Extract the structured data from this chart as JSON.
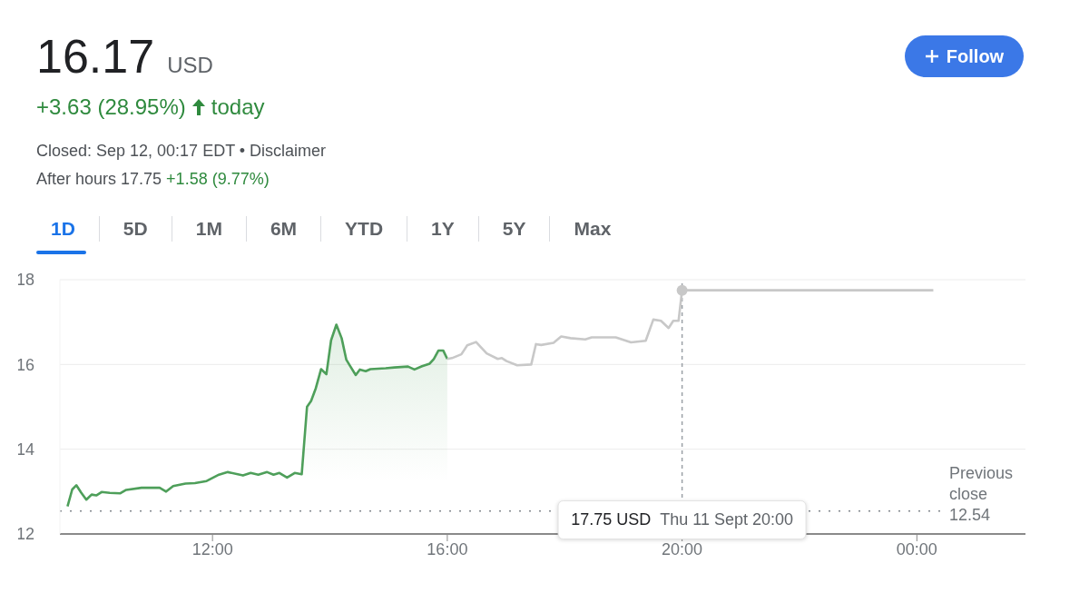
{
  "chart_data": {
    "type": "line",
    "title": "16.17",
    "subtitle": "USD",
    "annotations": [
      "+3.63 (28.95%)",
      "today",
      "Closed: Sep 12, 00:17 EDT • Disclaimer",
      "After hours 17.75",
      "+1.58 (9.77%)",
      "1D",
      "5D",
      "1M",
      "6M",
      "YTD",
      "1Y",
      "5Y",
      "Max",
      "Follow",
      "17.75 USD",
      "Thu 11 Sept 20:00"
    ],
    "series": [
      {
        "type": "area",
        "color": "#4e9f5a",
        "x": [
          9.53,
          9.61,
          9.68,
          9.76,
          9.85,
          9.94,
          10.02,
          10.11,
          10.25,
          10.43,
          10.53,
          10.79,
          11.1,
          11.21,
          11.33,
          11.54,
          11.7,
          11.9,
          12.11,
          12.26,
          12.52,
          12.65,
          12.78,
          12.93,
          13.04,
          13.14,
          13.27,
          13.4,
          13.52,
          13.61,
          13.68,
          13.76,
          13.85,
          13.94,
          14.02,
          14.11,
          14.2,
          14.28,
          14.35,
          14.44,
          14.51,
          14.61,
          14.69,
          14.95,
          15.1,
          15.33,
          15.44,
          15.57,
          15.7,
          15.77,
          15.85,
          15.93,
          16.0
        ],
        "values": [
          12.65,
          13.05,
          13.15,
          12.98,
          12.81,
          12.93,
          12.91,
          12.99,
          12.97,
          12.96,
          13.04,
          13.09,
          13.09,
          13.0,
          13.13,
          13.19,
          13.2,
          13.25,
          13.4,
          13.46,
          13.38,
          13.44,
          13.4,
          13.46,
          13.4,
          13.44,
          13.33,
          13.44,
          13.41,
          15.0,
          15.14,
          15.44,
          15.89,
          15.77,
          16.57,
          16.94,
          16.62,
          16.11,
          15.95,
          15.75,
          15.88,
          15.84,
          15.89,
          15.91,
          15.93,
          15.95,
          15.88,
          15.96,
          16.02,
          16.13,
          16.33,
          16.33,
          16.13
        ]
      },
      {
        "color": "#c8c8c8",
        "x": [
          16.0,
          16.08,
          16.24,
          16.34,
          16.49,
          16.67,
          16.86,
          16.93,
          17.01,
          17.19,
          17.43,
          17.51,
          17.6,
          17.81,
          17.94,
          18.1,
          18.35,
          18.46,
          18.87,
          19.13,
          19.38,
          19.51,
          19.64,
          19.77,
          19.85,
          19.94,
          20.0,
          24.28
        ],
        "values": [
          16.13,
          16.15,
          16.24,
          16.45,
          16.53,
          16.26,
          16.13,
          16.15,
          16.08,
          15.98,
          16.0,
          16.48,
          16.46,
          16.51,
          16.66,
          16.62,
          16.59,
          16.64,
          16.64,
          16.52,
          16.56,
          17.06,
          17.03,
          16.86,
          17.03,
          17.03,
          17.75,
          17.75
        ]
      },
      {
        "type": "scatter",
        "color": "#c8c8c8",
        "marker": "circle",
        "x": [
          20
        ],
        "values": [
          17.75
        ]
      }
    ],
    "xlim": [
      9.4,
      25.85
    ],
    "xticks": [
      {
        "value": 12,
        "label": "12:00"
      },
      {
        "value": 16,
        "label": "16:00"
      },
      {
        "value": 20,
        "label": "20:00"
      },
      {
        "value": 24,
        "label": "00:00"
      }
    ],
    "ylim": [
      12,
      18
    ],
    "yticks": [
      12,
      14,
      16,
      18
    ],
    "grid": "y",
    "ref_lines": [
      {
        "axis": "y",
        "value": 12.54,
        "label": "Previous close 12.54",
        "color": "#80868b",
        "line_style": "dotted"
      },
      {
        "axis": "x",
        "value": 20,
        "color": "#9aa0a6",
        "line_style": "dashed"
      }
    ]
  }
}
